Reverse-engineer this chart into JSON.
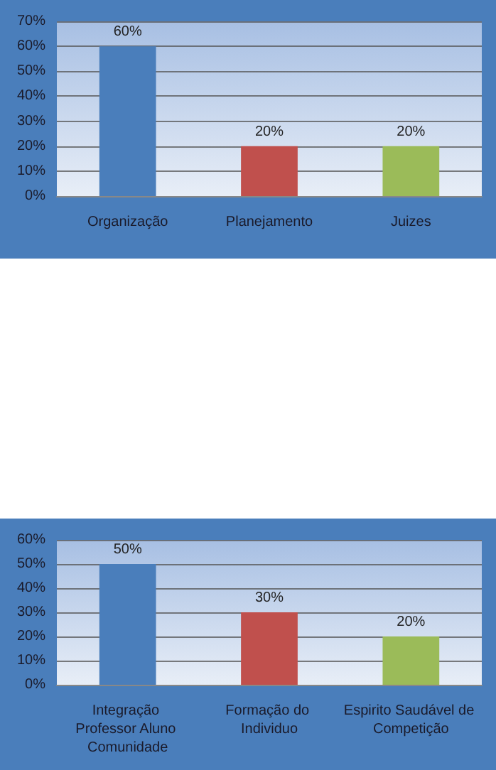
{
  "chart_data": [
    {
      "type": "bar",
      "categories": [
        "Organização",
        "Planejamento",
        "Juizes"
      ],
      "values": [
        60,
        20,
        20
      ],
      "colors": [
        "#4a7ebb",
        "#c0504d",
        "#9bbb59"
      ],
      "value_labels": [
        "60%",
        "20%",
        "20%"
      ],
      "ylim": [
        0,
        70
      ],
      "yticks": [
        {
          "value": 0,
          "label": "0%"
        },
        {
          "value": 10,
          "label": "10%"
        },
        {
          "value": 20,
          "label": "20%"
        },
        {
          "value": 30,
          "label": "30%"
        },
        {
          "value": 40,
          "label": "40%"
        },
        {
          "value": 50,
          "label": "50%"
        },
        {
          "value": 60,
          "label": "60%"
        },
        {
          "value": 70,
          "label": "70%"
        }
      ],
      "grid": "y"
    },
    {
      "type": "bar",
      "categories": [
        "Integração Professor Aluno Comunidade",
        "Formação do Individuo",
        "Espirito Saudável de Competição"
      ],
      "values": [
        50,
        30,
        20
      ],
      "colors": [
        "#4a7ebb",
        "#c0504d",
        "#9bbb59"
      ],
      "value_labels": [
        "50%",
        "30%",
        "20%"
      ],
      "ylim": [
        0,
        60
      ],
      "yticks": [
        {
          "value": 0,
          "label": "0%"
        },
        {
          "value": 10,
          "label": "10%"
        },
        {
          "value": 20,
          "label": "20%"
        },
        {
          "value": 30,
          "label": "30%"
        },
        {
          "value": 40,
          "label": "40%"
        },
        {
          "value": 50,
          "label": "50%"
        },
        {
          "value": 60,
          "label": "60%"
        }
      ],
      "grid": "y"
    }
  ]
}
